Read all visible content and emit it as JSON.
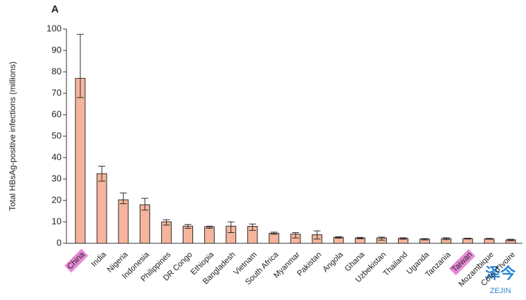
{
  "chart_data": {
    "type": "bar",
    "panel_label": "A",
    "y_label": "Total HBsAg-positive infections (millions)",
    "categories": [
      "China",
      "India",
      "Nigeria",
      "Indonesia",
      "Philippines",
      "DR Congo",
      "Ethiopia",
      "Bangladesh",
      "Vietnam",
      "South Africa",
      "Myanmar",
      "Pakistan",
      "Angola",
      "Ghana",
      "Uzbekistan",
      "Thailand",
      "Uganda",
      "Tanzania",
      "Taiwan",
      "Mozambique",
      "Côte d'Ivoire"
    ],
    "values": [
      77,
      32.5,
      20.3,
      18,
      10,
      8,
      7.7,
      8,
      7.9,
      4.7,
      4.3,
      4,
      2.8,
      2.5,
      2.5,
      2.3,
      2,
      2.2,
      2.2,
      2.1,
      1.6
    ],
    "ci_low": [
      68,
      29,
      18.5,
      15.5,
      8.5,
      7,
      7,
      5,
      6,
      4.2,
      2.5,
      2,
      2.4,
      2.1,
      1.5,
      1.9,
      1.6,
      1.7,
      2,
      1.9,
      1.2
    ],
    "ci_high": [
      97.5,
      36,
      23.5,
      21,
      11,
      8.8,
      8,
      10,
      9,
      5.2,
      5,
      5.8,
      3.1,
      2.8,
      2.9,
      2.6,
      2.2,
      2.6,
      2.4,
      2.3,
      1.9
    ],
    "color": "#f5b59c",
    "edge_color": "#2a2a2a",
    "highlighted": [
      0,
      18
    ],
    "highlight_color": "#e58ad6",
    "ylim": [
      0,
      100
    ],
    "yticks": [
      0,
      10,
      20,
      30,
      40,
      50,
      60,
      70,
      80,
      90,
      100
    ],
    "grid": false
  },
  "watermark": {
    "mark": "泽今",
    "text": "ZEJIN"
  }
}
